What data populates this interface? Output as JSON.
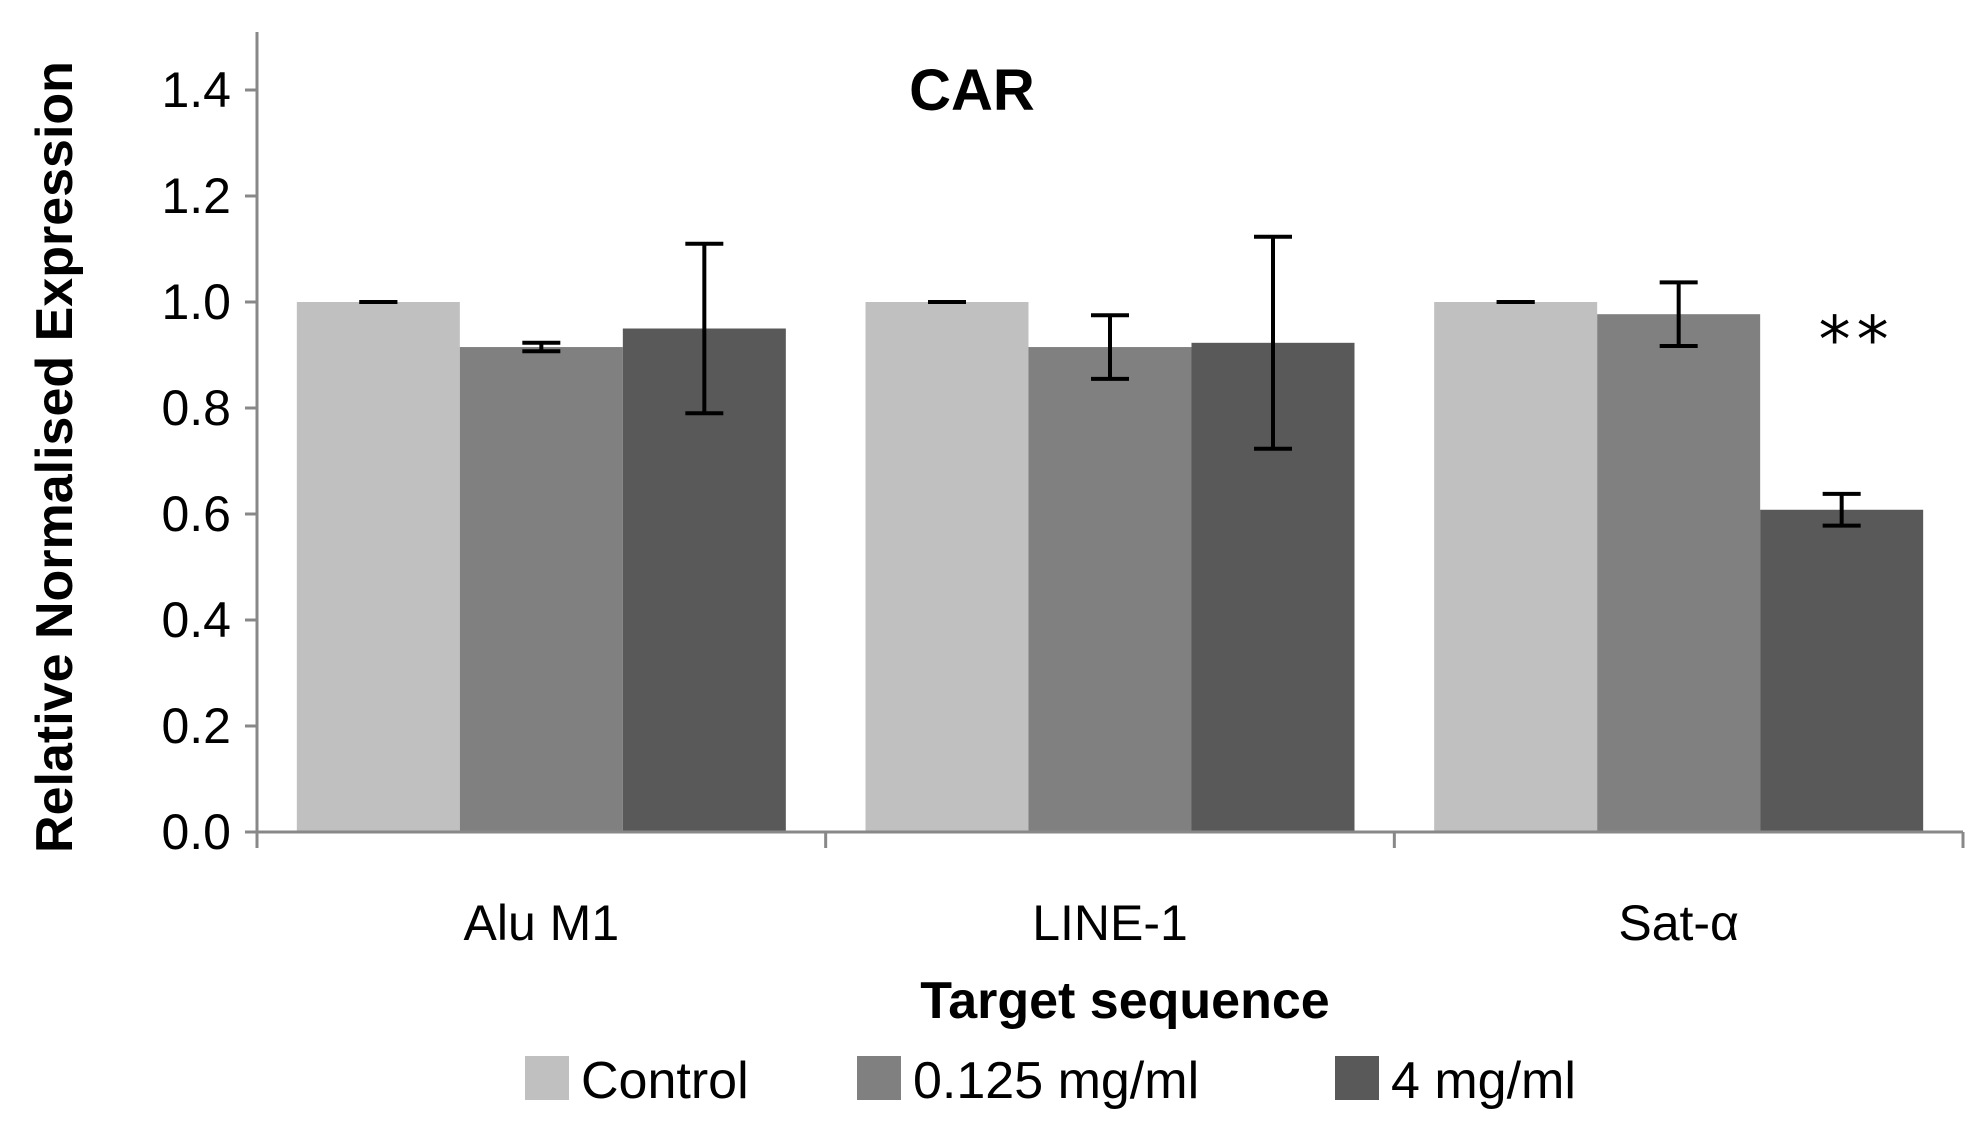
{
  "chart_data": {
    "type": "bar",
    "title": "CAR",
    "xlabel": "Target sequence",
    "ylabel": "Relative Normalised Expression",
    "ylim": [
      0,
      1.5
    ],
    "yticks": [
      "0.0",
      "0.2",
      "0.4",
      "0.6",
      "0.8",
      "1.0",
      "1.2",
      "1.4"
    ],
    "categories": [
      "Alu M1",
      "LINE-1",
      "Sat-α"
    ],
    "series": [
      {
        "name": "Control",
        "color": "#c0c0c0",
        "values": [
          1.0,
          1.0,
          1.0
        ],
        "errors": [
          0.0,
          0.0,
          0.0
        ]
      },
      {
        "name": "0.125 mg/ml",
        "color": "#808080",
        "values": [
          0.915,
          0.915,
          0.977
        ],
        "errors": [
          0.008,
          0.06,
          0.06
        ]
      },
      {
        "name": "4 mg/ml",
        "color": "#595959",
        "values": [
          0.95,
          0.923,
          0.608
        ],
        "errors": [
          0.16,
          0.2,
          0.03
        ]
      }
    ],
    "annotations": [
      {
        "text": "**",
        "category": "Sat-α",
        "series": "4 mg/ml"
      }
    ],
    "legend_position": "bottom"
  }
}
